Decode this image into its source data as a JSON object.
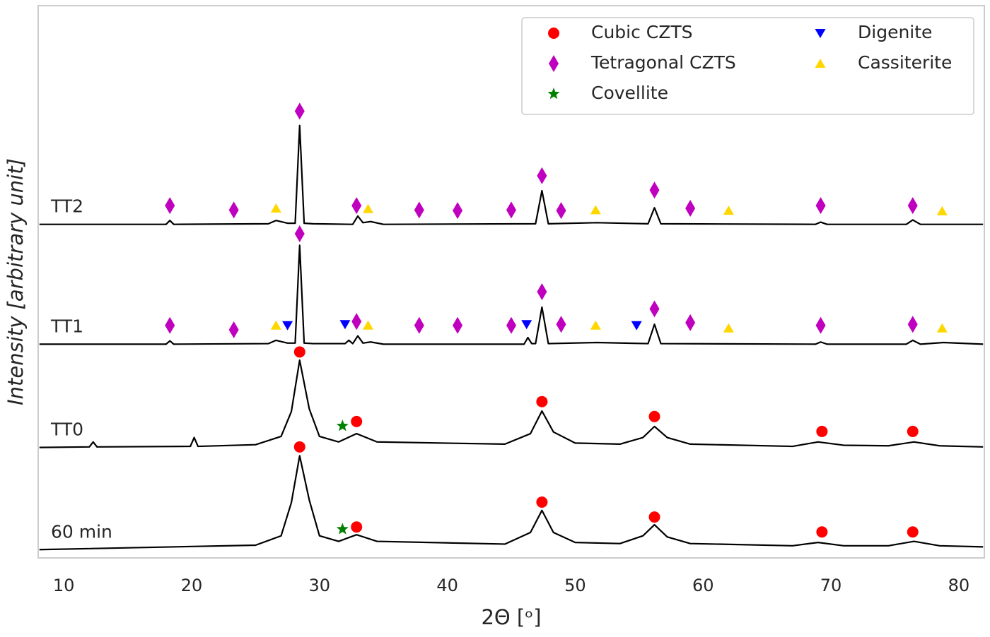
{
  "chart_data": {
    "type": "line",
    "xlabel": "2Θ [ᵒ]",
    "ylabel": "Intensity [arbitrary unit]",
    "xlim": [
      8,
      82
    ],
    "xticks": [
      10,
      20,
      30,
      40,
      50,
      60,
      70,
      80
    ],
    "ylim": [
      0,
      100
    ],
    "grid": false,
    "legend": "upper right",
    "traces": [
      {
        "label": "TT2",
        "color": "#000000",
        "x": [
          8.1,
          18.0,
          18.3,
          18.6,
          26.0,
          26.6,
          27.5,
          28.1,
          28.45,
          28.8,
          29.5,
          32.6,
          33.0,
          33.4,
          34.0,
          35,
          46.9,
          47.4,
          47.9,
          51.7,
          55.7,
          56.2,
          56.7,
          68.8,
          69.2,
          69.7,
          75.9,
          76.4,
          77.0,
          81.9
        ],
        "values": [
          60.4,
          60.4,
          61.1,
          60.4,
          60.5,
          61.1,
          60.6,
          60.6,
          78.3,
          60.6,
          60.5,
          60.4,
          61.9,
          60.7,
          60.9,
          60.4,
          60.5,
          66.5,
          60.5,
          60.7,
          60.5,
          63.4,
          60.5,
          60.4,
          60.8,
          60.4,
          60.4,
          61.2,
          60.4,
          60.4
        ]
      },
      {
        "label": "TT1",
        "color": "#000000",
        "x": [
          8.1,
          18.0,
          18.3,
          18.6,
          26.0,
          26.6,
          27.5,
          28.1,
          28.45,
          28.8,
          29.5,
          32.0,
          32.3,
          32.6,
          33.0,
          33.4,
          34.0,
          35,
          46.0,
          46.3,
          46.6,
          46.9,
          47.4,
          47.9,
          51.7,
          55.7,
          56.2,
          56.7,
          68.8,
          69.2,
          69.7,
          75.9,
          76.4,
          77.0,
          78.8,
          81.9
        ],
        "values": [
          38.7,
          38.7,
          39.3,
          38.7,
          38.8,
          39.4,
          38.9,
          38.9,
          56.6,
          38.9,
          38.8,
          38.8,
          39.4,
          38.8,
          40.2,
          38.9,
          39.1,
          38.7,
          38.7,
          39.9,
          38.8,
          38.8,
          45.4,
          38.8,
          39.0,
          38.8,
          42.3,
          38.8,
          38.7,
          39.1,
          38.7,
          38.7,
          39.4,
          38.7,
          39.0,
          38.7
        ]
      },
      {
        "label": "TT0",
        "color": "#000000",
        "x": [
          8.1,
          12.0,
          12.3,
          12.6,
          19.9,
          20.2,
          20.5,
          25.0,
          27.0,
          27.8,
          28.45,
          29.2,
          30.0,
          31.5,
          32.9,
          34.5,
          44.5,
          46.5,
          47.4,
          48.3,
          50.0,
          53.5,
          55.3,
          56.2,
          57.2,
          59.0,
          67.0,
          69.0,
          71.0,
          74.5,
          76.5,
          78.5,
          81.9
        ],
        "values": [
          20.0,
          20.1,
          21.0,
          20.1,
          20.2,
          21.8,
          20.2,
          20.5,
          22.0,
          26.5,
          35.8,
          27.0,
          22.0,
          21.0,
          22.5,
          21.0,
          20.6,
          22.5,
          26.6,
          22.8,
          20.8,
          20.6,
          21.8,
          23.8,
          21.8,
          20.6,
          20.2,
          21.0,
          20.4,
          20.3,
          21.0,
          20.3,
          20.1
        ]
      },
      {
        "label": "60 min",
        "color": "#000000",
        "x": [
          8.1,
          25.0,
          27.0,
          27.8,
          28.45,
          29.2,
          30.0,
          31.5,
          32.9,
          34.5,
          44.5,
          46.5,
          47.4,
          48.3,
          50.0,
          53.5,
          55.3,
          56.2,
          57.2,
          59.0,
          67.0,
          69.0,
          71.0,
          74.5,
          76.5,
          78.5,
          81.9
        ],
        "values": [
          1.5,
          2.3,
          4.0,
          10.0,
          18.5,
          10.5,
          4.0,
          3.0,
          4.2,
          3.0,
          2.5,
          4.6,
          8.6,
          4.6,
          2.8,
          2.6,
          4.0,
          6.0,
          3.8,
          2.6,
          2.2,
          2.8,
          2.2,
          2.2,
          3.0,
          2.2,
          2.0
        ]
      }
    ],
    "series": [
      {
        "name": "Cubic CZTS",
        "color": "#ff0000",
        "marker": "circle",
        "x": [
          28.45,
          32.9,
          47.4,
          56.2,
          69.3,
          76.4,
          28.45,
          32.9,
          47.4,
          56.2,
          69.3,
          76.4
        ],
        "values": [
          37.3,
          24.7,
          28.3,
          25.6,
          22.9,
          22.9,
          20.1,
          5.6,
          10.1,
          7.4,
          4.7,
          4.7
        ]
      },
      {
        "name": "Tetragonal CZTS",
        "color": "#bf00bf",
        "marker": "diamond",
        "x": [
          18.3,
          23.3,
          28.45,
          32.9,
          37.8,
          40.8,
          45.0,
          47.4,
          48.9,
          56.2,
          59.0,
          69.2,
          76.4,
          18.3,
          23.3,
          28.45,
          32.9,
          37.8,
          40.8,
          45.0,
          47.4,
          48.9,
          56.2,
          59.0,
          69.2,
          76.4
        ],
        "values": [
          63.8,
          63.0,
          80.9,
          63.8,
          63.0,
          62.9,
          63.0,
          69.2,
          62.9,
          66.6,
          63.3,
          63.8,
          63.8,
          42.1,
          41.3,
          58.7,
          42.8,
          42.1,
          42.1,
          42.1,
          48.2,
          42.3,
          45.1,
          42.6,
          42.1,
          42.3
        ]
      },
      {
        "name": "Covellite",
        "color": "#008000",
        "marker": "star",
        "x": [
          31.8,
          31.8
        ],
        "values": [
          23.9,
          5.2
        ]
      },
      {
        "name": "Digenite",
        "color": "#0000ff",
        "marker": "triangle-down",
        "x": [
          27.5,
          32.0,
          46.2,
          54.8
        ],
        "values": [
          42.1,
          42.3,
          42.3,
          42.1
        ]
      },
      {
        "name": "Cassiterite",
        "color": "#ffd700",
        "marker": "triangle-up",
        "x": [
          26.6,
          33.8,
          51.6,
          62.0,
          78.7,
          26.6,
          33.8,
          51.6,
          62.0,
          78.7
        ],
        "values": [
          63.3,
          63.2,
          63.0,
          62.9,
          62.8,
          42.1,
          42.1,
          42.1,
          41.6,
          41.6
        ]
      }
    ]
  }
}
